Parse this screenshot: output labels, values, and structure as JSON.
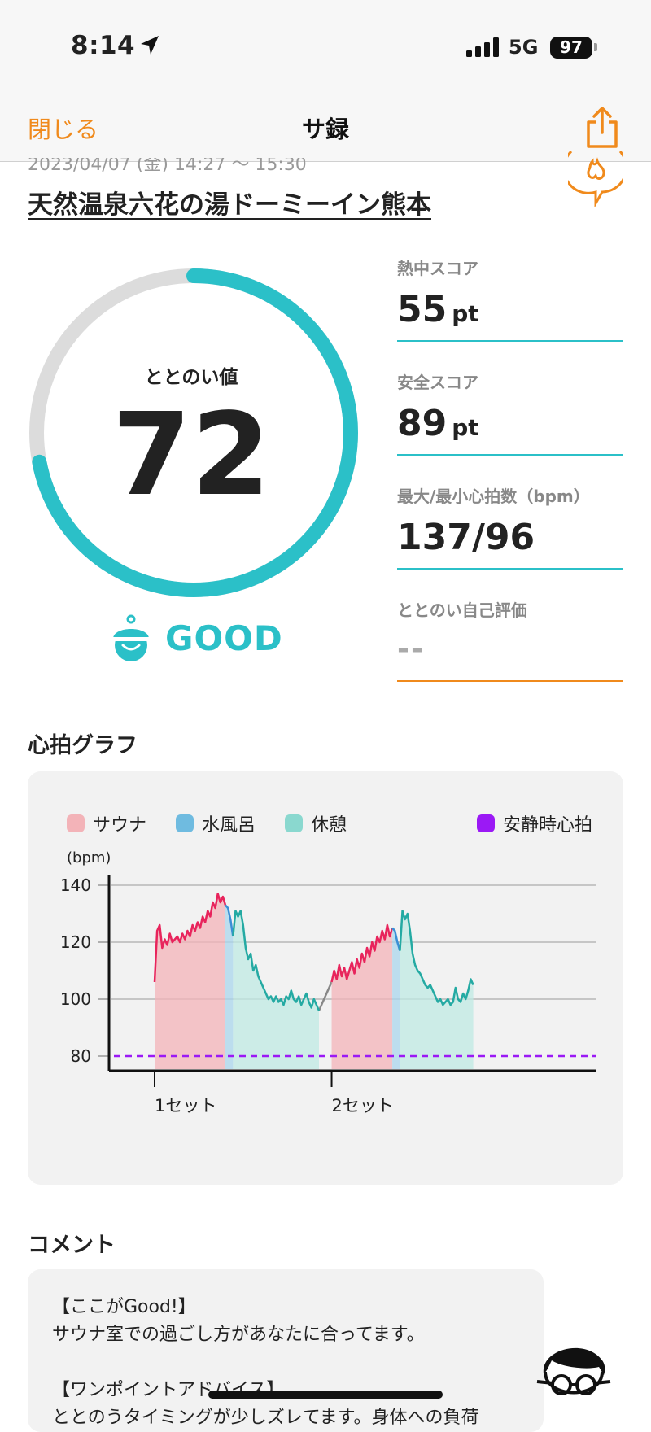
{
  "status_bar": {
    "time": "8:14",
    "network": "5G",
    "battery": "97"
  },
  "nav": {
    "close": "閉じる",
    "title": "サ録",
    "share_icon": "share-icon"
  },
  "header": {
    "date_partial": "2023/04/07 (金) 14:27 〜 15:30",
    "facility": "天然温泉六花の湯ドーミーイン熊本"
  },
  "gauge": {
    "label": "ととのい値",
    "value": "72",
    "fill_percent": 72,
    "rating": "GOOD",
    "color": "#2bc0c8"
  },
  "metrics": [
    {
      "label": "熱中スコア",
      "value": "55",
      "unit": "pt"
    },
    {
      "label": "安全スコア",
      "value": "89",
      "unit": "pt"
    },
    {
      "label": "最大/最小心拍数（bpm）",
      "value": "137/96",
      "unit": ""
    },
    {
      "label": "ととのい自己評価",
      "value": "--",
      "unit": ""
    }
  ],
  "chart_section": {
    "title": "心拍グラフ"
  },
  "chart_data": {
    "type": "area",
    "legend": [
      {
        "name": "サウナ",
        "color": "#f3b3b8"
      },
      {
        "name": "水風呂",
        "color": "#6fbbe0"
      },
      {
        "name": "休憩",
        "color": "#8ad8cf"
      },
      {
        "name": "安静時心拍",
        "color": "#9b19f5"
      }
    ],
    "ylabel": "(bpm)",
    "ylim": [
      80,
      140
    ],
    "yticks": [
      "140",
      "120",
      "100",
      "80"
    ],
    "xticks": [
      "1セット",
      "2セット"
    ],
    "resting_hr": 80,
    "segments": [
      {
        "phase": "sauna",
        "points": [
          [
            0,
            106
          ],
          [
            1,
            124
          ],
          [
            2,
            126
          ],
          [
            3,
            118
          ],
          [
            4,
            121
          ],
          [
            5,
            119
          ],
          [
            6,
            123
          ],
          [
            7,
            120
          ],
          [
            8,
            121
          ],
          [
            9,
            122
          ],
          [
            10,
            120
          ],
          [
            11,
            123
          ],
          [
            12,
            121
          ],
          [
            13,
            124
          ],
          [
            14,
            122
          ],
          [
            15,
            126
          ],
          [
            16,
            124
          ],
          [
            17,
            127
          ],
          [
            18,
            125
          ],
          [
            19,
            129
          ],
          [
            20,
            127
          ],
          [
            21,
            131
          ],
          [
            22,
            129
          ],
          [
            23,
            134
          ],
          [
            24,
            132
          ],
          [
            25,
            137
          ],
          [
            26,
            134
          ],
          [
            27,
            136
          ],
          [
            28,
            133
          ]
        ]
      },
      {
        "phase": "cold",
        "points": [
          [
            28,
            133
          ],
          [
            29,
            132
          ],
          [
            30,
            128
          ],
          [
            31,
            122
          ]
        ]
      },
      {
        "phase": "rest",
        "points": [
          [
            31,
            122
          ],
          [
            32,
            131
          ],
          [
            33,
            129
          ],
          [
            34,
            131
          ],
          [
            35,
            126
          ],
          [
            36,
            118
          ],
          [
            37,
            114
          ],
          [
            38,
            116
          ],
          [
            39,
            110
          ],
          [
            40,
            112
          ],
          [
            41,
            108
          ],
          [
            42,
            106
          ],
          [
            43,
            104
          ],
          [
            44,
            102
          ],
          [
            45,
            100
          ],
          [
            46,
            101
          ],
          [
            47,
            99
          ],
          [
            48,
            101
          ],
          [
            49,
            99
          ],
          [
            50,
            100
          ],
          [
            51,
            98
          ],
          [
            52,
            101
          ],
          [
            53,
            100
          ],
          [
            54,
            103
          ],
          [
            55,
            100
          ],
          [
            56,
            99
          ],
          [
            57,
            101
          ],
          [
            58,
            98
          ],
          [
            59,
            100
          ],
          [
            60,
            102
          ],
          [
            61,
            99
          ],
          [
            62,
            97
          ],
          [
            63,
            100
          ],
          [
            64,
            98
          ],
          [
            65,
            96
          ]
        ]
      },
      {
        "phase": "sauna",
        "points": [
          [
            70,
            106
          ],
          [
            71,
            110
          ],
          [
            72,
            107
          ],
          [
            73,
            112
          ],
          [
            74,
            108
          ],
          [
            75,
            111
          ],
          [
            76,
            107
          ],
          [
            77,
            110
          ],
          [
            78,
            113
          ],
          [
            79,
            109
          ],
          [
            80,
            114
          ],
          [
            81,
            111
          ],
          [
            82,
            116
          ],
          [
            83,
            113
          ],
          [
            84,
            118
          ],
          [
            85,
            115
          ],
          [
            86,
            120
          ],
          [
            87,
            117
          ],
          [
            88,
            122
          ],
          [
            89,
            120
          ],
          [
            90,
            124
          ],
          [
            91,
            121
          ],
          [
            92,
            126
          ],
          [
            93,
            122
          ],
          [
            94,
            125
          ]
        ]
      },
      {
        "phase": "cold",
        "points": [
          [
            94,
            125
          ],
          [
            95,
            124
          ],
          [
            96,
            120
          ],
          [
            97,
            117
          ]
        ]
      },
      {
        "phase": "rest",
        "points": [
          [
            97,
            117
          ],
          [
            98,
            131
          ],
          [
            99,
            128
          ],
          [
            100,
            130
          ],
          [
            101,
            124
          ],
          [
            102,
            116
          ],
          [
            103,
            112
          ],
          [
            104,
            110
          ],
          [
            105,
            109
          ],
          [
            106,
            107
          ],
          [
            107,
            105
          ],
          [
            108,
            104
          ],
          [
            109,
            105
          ],
          [
            110,
            103
          ],
          [
            111,
            101
          ],
          [
            112,
            99
          ],
          [
            113,
            100
          ],
          [
            114,
            98
          ],
          [
            115,
            99
          ],
          [
            116,
            100
          ],
          [
            117,
            98
          ],
          [
            118,
            99
          ],
          [
            119,
            104
          ],
          [
            120,
            100
          ],
          [
            121,
            99
          ],
          [
            122,
            102
          ],
          [
            123,
            100
          ],
          [
            124,
            103
          ],
          [
            125,
            107
          ],
          [
            126,
            105
          ]
        ]
      }
    ]
  },
  "comment": {
    "title": "コメント",
    "lines": [
      "【ここがGood!】",
      "サウナ室での過ごし方があなたに合ってます。",
      "",
      "【ワンポイントアドバイス】",
      "ととのうタイミングが少しズレてます。身体への負荷"
    ]
  }
}
